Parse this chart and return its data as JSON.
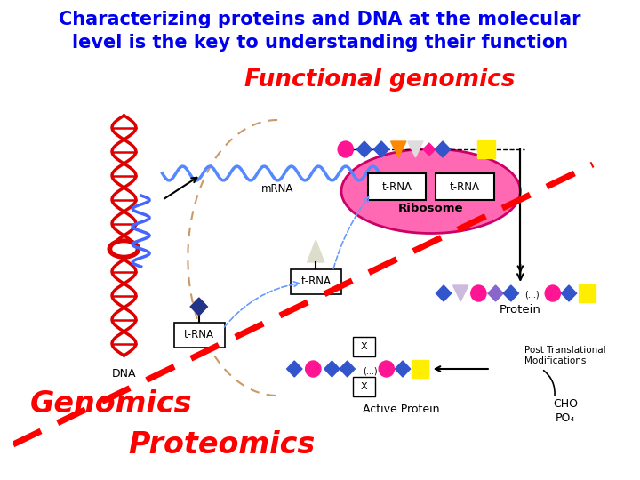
{
  "title_line1": "Characterizing proteins and DNA at the molecular",
  "title_line2": "level is the key to understanding their function",
  "title_color": "#0000EE",
  "title_fontsize": 15,
  "label_functional": "Functional genomics",
  "label_functional_color": "#FF0000",
  "label_functional_fontsize": 19,
  "label_genomics": "Genomics",
  "label_genomics_color": "#FF0000",
  "label_genomics_fontsize": 24,
  "label_proteomics": "Proteomics",
  "label_proteomics_color": "#FF0000",
  "label_proteomics_fontsize": 24,
  "bg_color": "#FFFFFF",
  "dna_red": "#DD0000",
  "dna_blue": "#4466FF",
  "mrna_color": "#5588FF",
  "ribosome_color": "#FF69B4",
  "ribosome_border": "#CC0066",
  "tan_dashed": "#CC9966",
  "red_dashed": "#FF0000",
  "shape_pink": "#FF1493",
  "shape_blue": "#3355CC",
  "shape_purple": "#8866CC",
  "shape_orange": "#FF8800",
  "shape_gray": "#AAAAAA",
  "shape_lavender": "#BBAADD",
  "shape_yellow": "#FFEE00",
  "shape_navy": "#223388"
}
